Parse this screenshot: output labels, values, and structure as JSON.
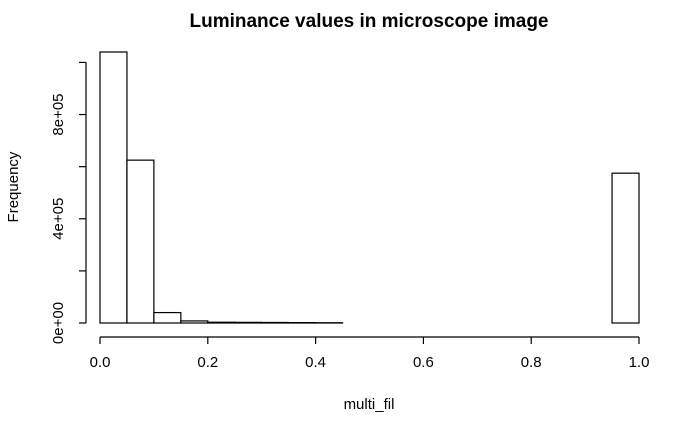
{
  "chart_data": {
    "type": "bar",
    "title": "Luminance values in microscope image",
    "xlabel": "multi_fil",
    "ylabel": "Frequency",
    "bin_edges": [
      0.0,
      0.05,
      0.1,
      0.15,
      0.2,
      0.25,
      0.3,
      0.35,
      0.4,
      0.45,
      0.5,
      0.55,
      0.6,
      0.65,
      0.7,
      0.75,
      0.8,
      0.85,
      0.9,
      0.95,
      1.0
    ],
    "values": [
      1040000,
      625000,
      40000,
      8000,
      3000,
      2500,
      2000,
      1500,
      1000,
      0,
      0,
      0,
      0,
      0,
      0,
      0,
      0,
      0,
      0,
      575000
    ],
    "xlim": [
      0,
      1
    ],
    "ylim": [
      0,
      1040000
    ],
    "x_ticks": [
      0.0,
      0.2,
      0.4,
      0.6,
      0.8,
      1.0
    ],
    "x_tick_labels": [
      "0.0",
      "0.2",
      "0.4",
      "0.6",
      "0.8",
      "1.0"
    ],
    "y_ticks": [
      0,
      200000,
      400000,
      600000,
      800000,
      1000000
    ],
    "y_tick_labels": [
      "0e+00",
      "",
      "4e+05",
      "",
      "8e+05",
      ""
    ],
    "grid": false,
    "colors": {
      "bar_fill": "#ffffff",
      "bar_stroke": "#000000"
    }
  }
}
